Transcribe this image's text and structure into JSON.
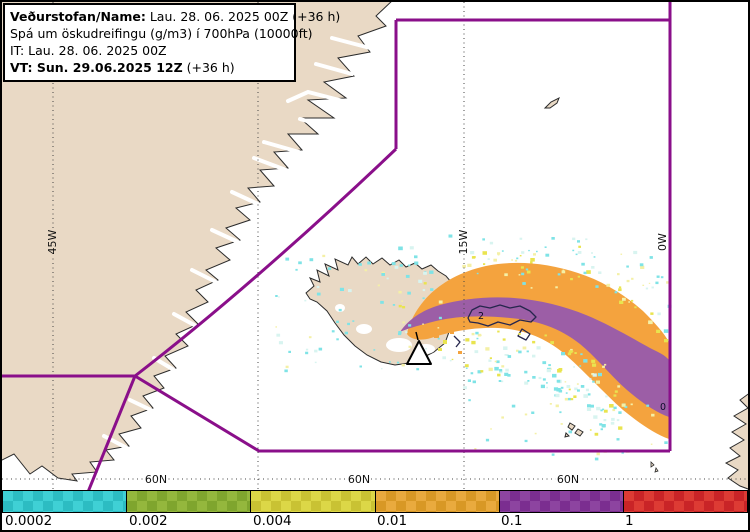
{
  "header": {
    "line1_label": "Veðurstofan/Name:",
    "line1_value": " Lau. 28. 06. 2025 00Z (+36 h)",
    "line2": "Spá um öskudreifingu (g/m3) í 700hPa (10000ft)",
    "line3": "IT: Lau. 28. 06. 2025 00Z",
    "line4_label": "VT: Sun. 29.06.2025 12Z",
    "line4_value": " (+36 h)"
  },
  "map": {
    "meridian_labels": [
      "45W",
      "15W",
      "0W"
    ],
    "parallel_label": "60N",
    "contour_label_a": "2",
    "contour_label_b": "0"
  },
  "colorbar": {
    "segments": [
      {
        "label": "0.0002",
        "light": "#3fd0d5",
        "dark": "#2cbcc2"
      },
      {
        "label": "0.002",
        "light": "#94b73d",
        "dark": "#7fa52e"
      },
      {
        "label": "0.004",
        "light": "#dcd747",
        "dark": "#c9c233"
      },
      {
        "label": "0.01",
        "light": "#e9aa3e",
        "dark": "#d89825"
      },
      {
        "label": "0.1",
        "light": "#8d44a0",
        "dark": "#7b2e90"
      },
      {
        "label": "1",
        "light": "#dd3b34",
        "dark": "#c92427"
      }
    ]
  },
  "colors": {
    "land": "#e9d9c5",
    "sea": "#ffffff",
    "boundary": "#8a0f8a",
    "plume_orange": "#f4a33e",
    "plume_purple": "#9c5ea6",
    "speck_cyan": "#7fe3e6",
    "speck_pale_cyan": "#d8f4f0",
    "speck_yellow": "#e9e44f",
    "speck_pale_yellow": "#f4f0a6"
  }
}
